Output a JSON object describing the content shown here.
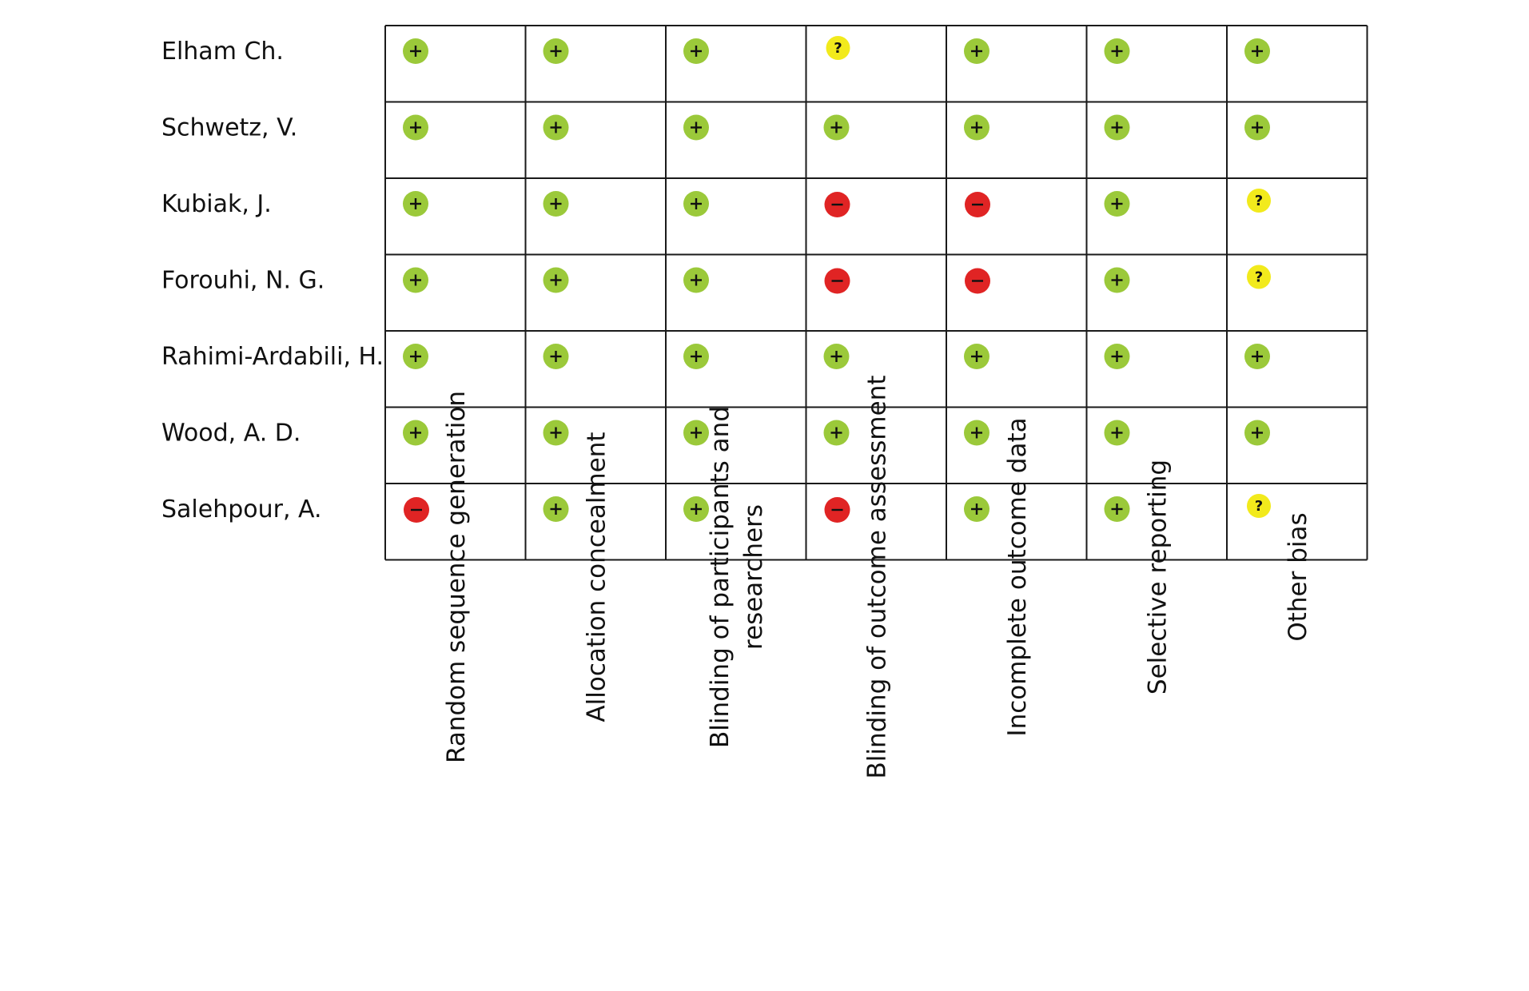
{
  "chart_data": {
    "type": "table",
    "title": "",
    "studies": [
      "Elham Ch.",
      "Schwetz, V.",
      "Kubiak, J.",
      "Forouhi, N. G.",
      "Rahimi-Ardabili, H.",
      "Wood, A. D.",
      "Salehpour, A."
    ],
    "domains": [
      [
        "Random sequence generation"
      ],
      [
        "Allocation concealment"
      ],
      [
        "Blinding of participants and",
        "researchers"
      ],
      [
        "Blinding of outcome assessment"
      ],
      [
        "Incomplete outcome data"
      ],
      [
        "Selective reporting"
      ],
      [
        "Other bias"
      ]
    ],
    "judgement_legend": {
      "low": {
        "symbol": "+",
        "color": "#9bc93a"
      },
      "high": {
        "symbol": "−",
        "color": "#e02424"
      },
      "unclear": {
        "symbol": "?",
        "color": "#f2ea1c"
      }
    },
    "judgements": [
      [
        "low",
        "low",
        "low",
        "unclear",
        "low",
        "low",
        "low"
      ],
      [
        "low",
        "low",
        "low",
        "low",
        "low",
        "low",
        "low"
      ],
      [
        "low",
        "low",
        "low",
        "high",
        "high",
        "low",
        "unclear"
      ],
      [
        "low",
        "low",
        "low",
        "high",
        "high",
        "low",
        "unclear"
      ],
      [
        "low",
        "low",
        "low",
        "low",
        "low",
        "low",
        "low"
      ],
      [
        "low",
        "low",
        "low",
        "low",
        "low",
        "low",
        "low"
      ],
      [
        "high",
        "low",
        "low",
        "high",
        "low",
        "low",
        "unclear"
      ]
    ]
  }
}
